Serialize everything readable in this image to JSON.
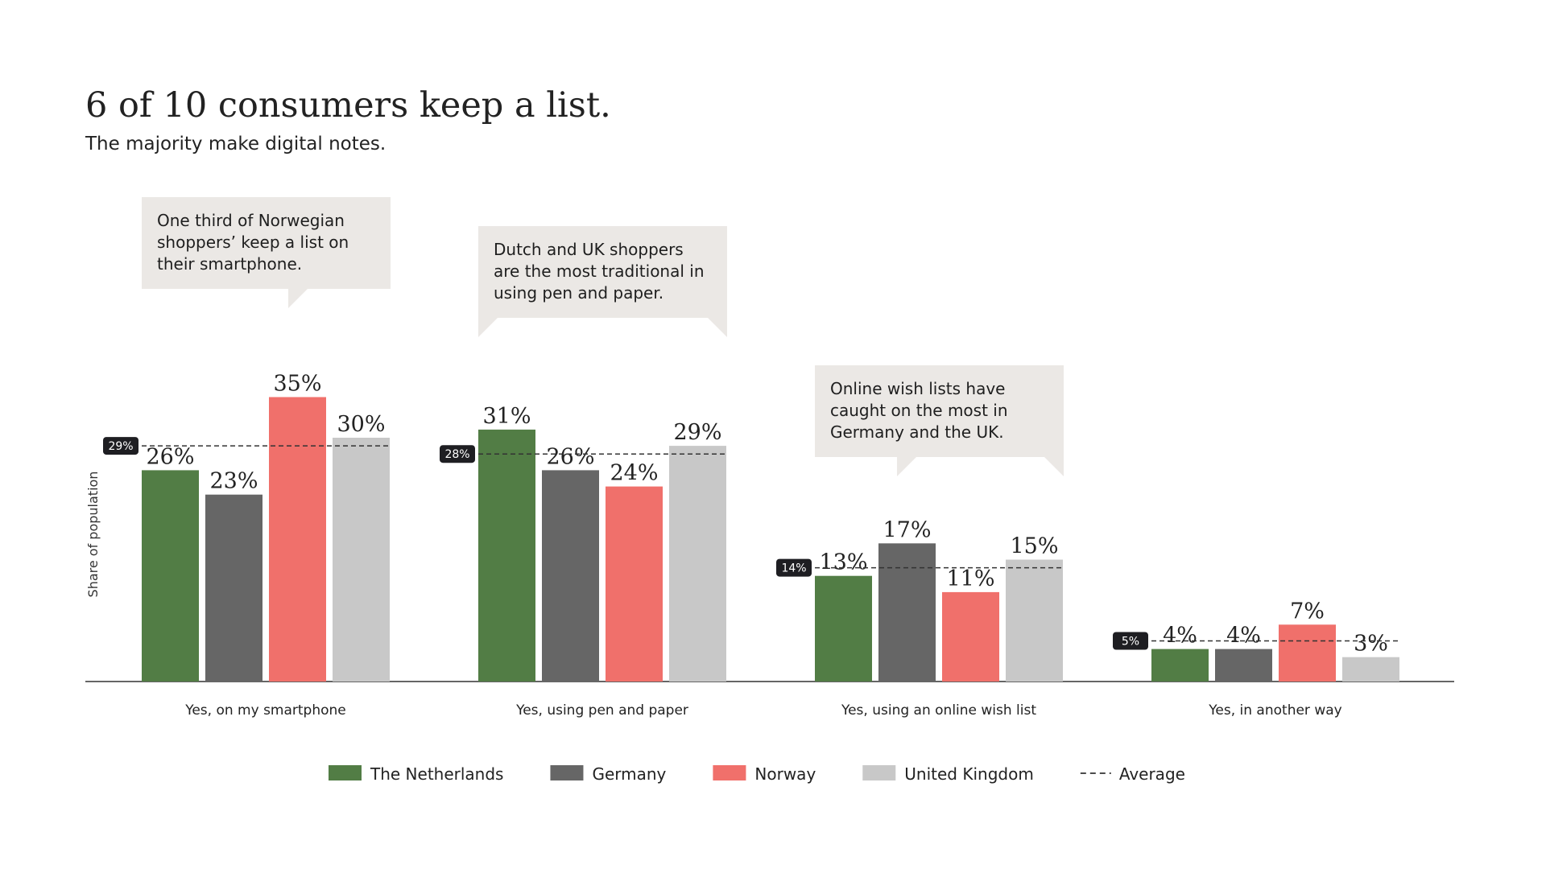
{
  "title": "6 of 10 consumers keep a list.",
  "subtitle": "The majority make digital notes.",
  "colors": {
    "netherlands": "#527d45",
    "germany": "#666666",
    "norway": "#f0706b",
    "uk": "#c8c8c8",
    "badge": "#1e1e22",
    "callout": "#ebe8e5"
  },
  "callouts": [
    {
      "text": "One third of Norwegian shoppers’ keep a list on their smartphone."
    },
    {
      "text": "Dutch and UK shoppers are the most traditional in using pen and paper."
    },
    {
      "text": "Online wish lists have caught on the most in Germany and the UK."
    }
  ],
  "chart_data": {
    "type": "bar",
    "title": "6 of 10 consumers keep a list.",
    "subtitle": "The majority make digital notes.",
    "ylabel": "Share of population",
    "xlabel": "",
    "ylim": [
      0,
      40
    ],
    "grid": false,
    "legend_position": "bottom",
    "categories": [
      "Yes, on my smartphone",
      "Yes, using pen and paper",
      "Yes, using an online wish list",
      "Yes, in another way"
    ],
    "series": [
      {
        "name": "The Netherlands",
        "color": "#527d45",
        "values": [
          26,
          31,
          13,
          4
        ]
      },
      {
        "name": "Germany",
        "color": "#666666",
        "values": [
          23,
          26,
          17,
          4
        ]
      },
      {
        "name": "Norway",
        "color": "#f0706b",
        "values": [
          35,
          24,
          11,
          7
        ]
      },
      {
        "name": "United Kingdom",
        "color": "#c8c8c8",
        "values": [
          30,
          29,
          15,
          3
        ]
      }
    ],
    "average": {
      "name": "Average",
      "values": [
        29,
        28,
        14,
        5
      ]
    },
    "value_suffix": "%"
  }
}
